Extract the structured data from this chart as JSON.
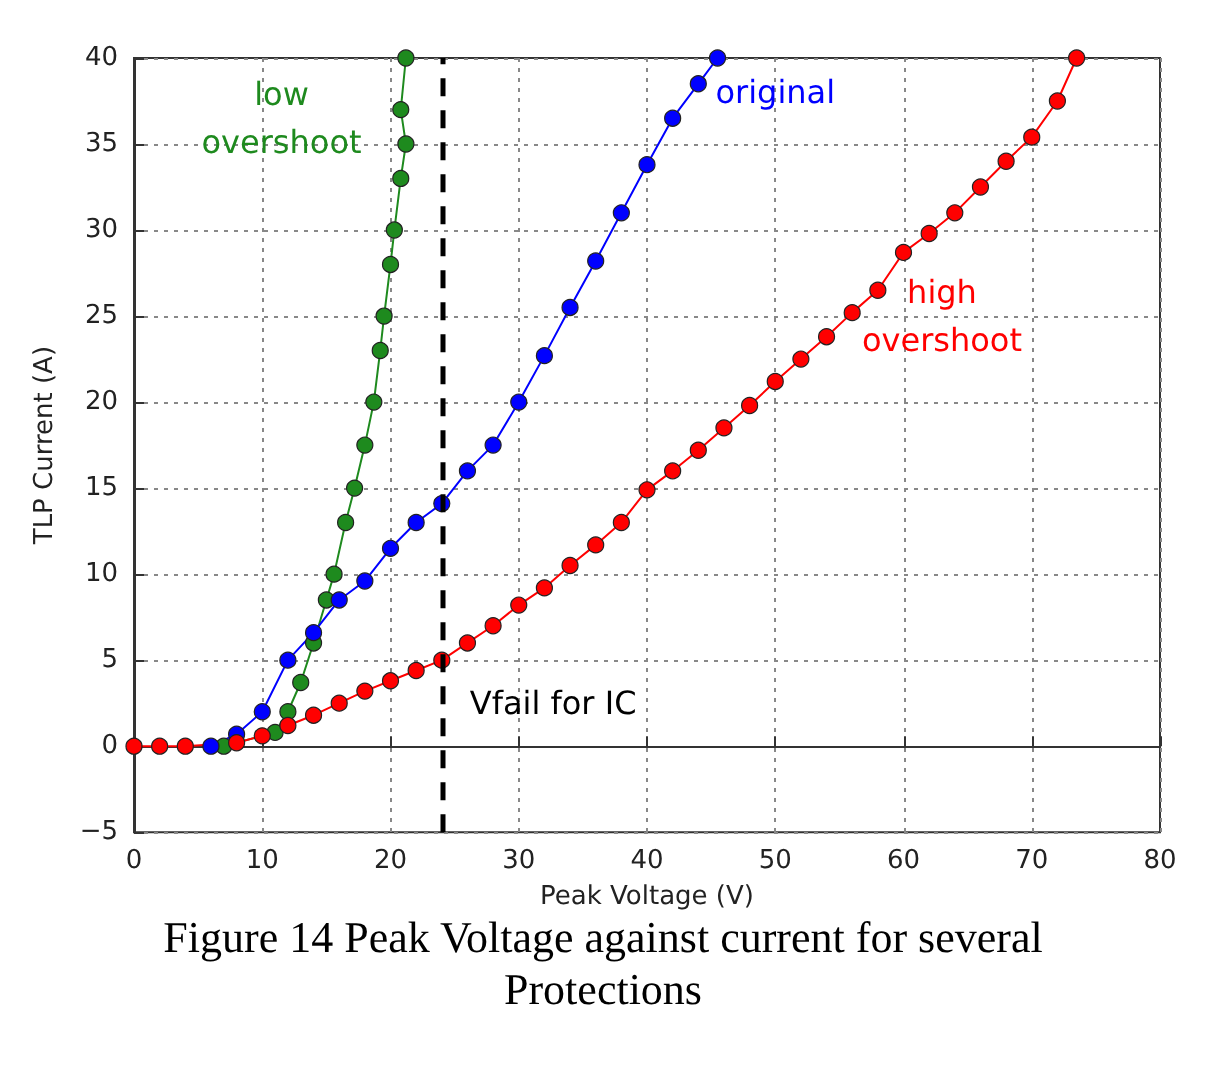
{
  "chart_data": {
    "type": "line",
    "xlabel": "Peak Voltage (V)",
    "ylabel": "TLP Current (A)",
    "xlim": [
      0,
      80
    ],
    "xticks": [
      0,
      10,
      20,
      30,
      40,
      50,
      60,
      70,
      80
    ],
    "ylim": [
      -5,
      40
    ],
    "yticks": [
      -5,
      0,
      5,
      10,
      15,
      20,
      25,
      30,
      35,
      40
    ],
    "grid": true,
    "legend": false,
    "marker": "circle",
    "line_style": "solid",
    "series": [
      {
        "name": "low overshoot",
        "color": "#1e8a1e",
        "x": [
          7,
          11,
          12,
          13,
          14,
          15,
          15.6,
          16.5,
          17.2,
          18,
          18.7,
          19.2,
          19.5,
          20,
          20.3,
          20.8,
          21.2,
          20.8,
          21.2
        ],
        "values": [
          0,
          0.8,
          2,
          3.7,
          6,
          8.5,
          10,
          13,
          15,
          17.5,
          20,
          23,
          25,
          28,
          30,
          33,
          35,
          37,
          40
        ]
      },
      {
        "name": "original",
        "color": "#0000ff",
        "x": [
          6,
          8,
          10,
          12,
          14,
          16,
          18,
          20,
          22,
          24,
          26,
          28,
          30,
          32,
          34,
          36,
          38,
          40,
          42,
          44,
          45.5
        ],
        "values": [
          0,
          0.7,
          2,
          5,
          6.6,
          8.5,
          9.6,
          11.5,
          13,
          14.1,
          16,
          17.5,
          20,
          22.7,
          25.5,
          28.2,
          31,
          33.8,
          36.5,
          38.5,
          40
        ]
      },
      {
        "name": "high overshoot",
        "color": "#ff0000",
        "x": [
          0,
          2,
          4,
          8,
          10,
          12,
          14,
          16,
          18,
          20,
          22,
          24,
          26,
          28,
          30,
          32,
          34,
          36,
          38,
          40,
          42,
          44,
          46,
          48,
          50,
          52,
          54,
          56,
          58,
          60,
          62,
          64,
          66,
          68,
          70,
          72,
          73.5
        ],
        "values": [
          0,
          0,
          0,
          0.2,
          0.6,
          1.2,
          1.8,
          2.5,
          3.2,
          3.8,
          4.4,
          5,
          6,
          7,
          8.2,
          9.2,
          10.5,
          11.7,
          13,
          14.9,
          16,
          17.2,
          18.5,
          19.8,
          21.2,
          22.5,
          23.8,
          25.2,
          26.5,
          28.7,
          29.8,
          31,
          32.5,
          34,
          35.4,
          37.5,
          40
        ]
      }
    ],
    "ref_lines": [
      {
        "axis": "x",
        "value": 24,
        "label": "Vfail for IC",
        "color": "#000000",
        "line_style": "dashed"
      }
    ],
    "annotations": [
      "Figure 14 Peak Voltage against current for several Protections"
    ]
  }
}
